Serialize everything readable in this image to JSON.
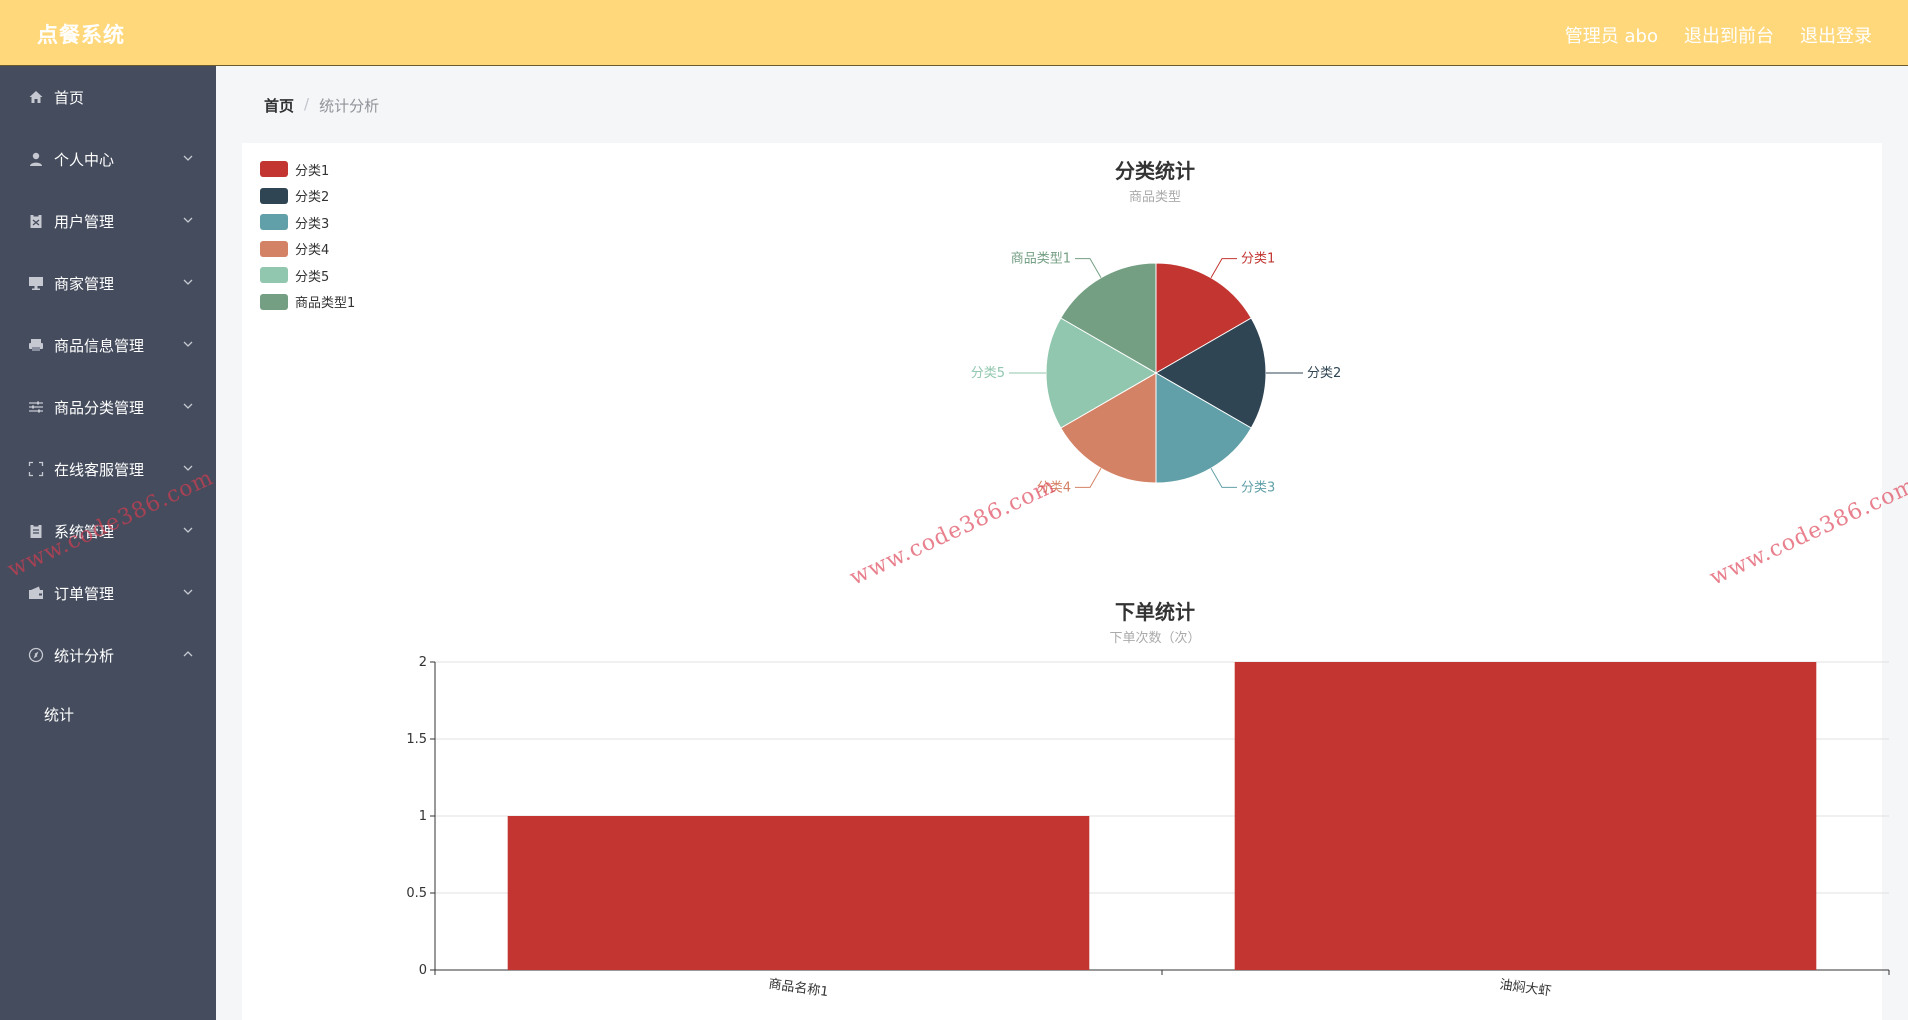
{
  "app": {
    "title": "点餐系统"
  },
  "header": {
    "user_label": "管理员 abo",
    "back_to_front": "退出到前台",
    "logout": "退出登录"
  },
  "sidebar": {
    "items": [
      {
        "label": "首页",
        "icon": "home-icon"
      },
      {
        "label": "个人中心",
        "icon": "user-icon"
      },
      {
        "label": "用户管理",
        "icon": "clipboard-icon"
      },
      {
        "label": "商家管理",
        "icon": "monitor-icon"
      },
      {
        "label": "商品信息管理",
        "icon": "printer-icon"
      },
      {
        "label": "商品分类管理",
        "icon": "sliders-icon"
      },
      {
        "label": "在线客服管理",
        "icon": "fullscreen-icon"
      },
      {
        "label": "系统管理",
        "icon": "clipboard-icon"
      },
      {
        "label": "订单管理",
        "icon": "wallet-icon"
      },
      {
        "label": "统计分析",
        "icon": "compass-icon"
      }
    ],
    "sub_items": [
      {
        "label": "统计"
      }
    ]
  },
  "breadcrumb": {
    "home": "首页",
    "separator": "/",
    "current": "统计分析"
  },
  "watermark": {
    "text": "www.code386.com"
  },
  "chart_data": [
    {
      "type": "pie",
      "title": "分类统计",
      "subtitle": "商品类型",
      "legend_position": "top-left",
      "slices": [
        {
          "name": "分类1",
          "value": 1,
          "color": "#c23531"
        },
        {
          "name": "分类2",
          "value": 1,
          "color": "#2f4554"
        },
        {
          "name": "分类3",
          "value": 1,
          "color": "#61a0a8"
        },
        {
          "name": "分类4",
          "value": 1,
          "color": "#d48265"
        },
        {
          "name": "分类5",
          "value": 1,
          "color": "#91c7ae"
        },
        {
          "name": "商品类型1",
          "value": 1,
          "color": "#749f83"
        }
      ]
    },
    {
      "type": "bar",
      "title": "下单统计",
      "subtitle": "下单次数（次）",
      "categories": [
        "商品名称1",
        "油焖大虾"
      ],
      "values": [
        1,
        2
      ],
      "ylim": [
        0,
        2
      ],
      "yticks": [
        "0",
        "0.5",
        "1",
        "1.5",
        "2"
      ],
      "color": "#c23531",
      "grid": true
    }
  ]
}
